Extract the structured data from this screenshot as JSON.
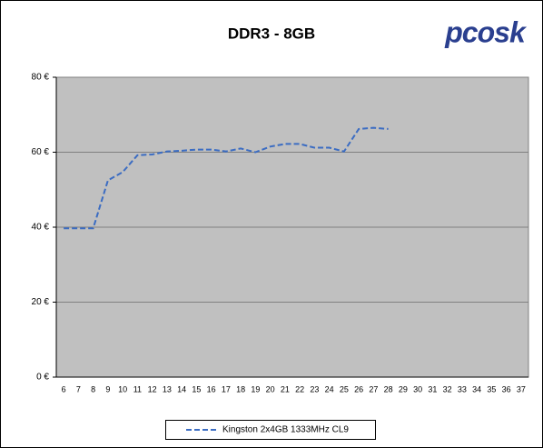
{
  "chart_data": {
    "type": "line",
    "title": "DDR3 - 8GB",
    "logo": "pcosk",
    "categories": [
      "6",
      "7",
      "8",
      "9",
      "10",
      "11",
      "12",
      "13",
      "14",
      "15",
      "16",
      "17",
      "18",
      "19",
      "20",
      "21",
      "22",
      "23",
      "24",
      "25",
      "26",
      "27",
      "28",
      "29",
      "30",
      "31",
      "32",
      "33",
      "34",
      "35",
      "36",
      "37"
    ],
    "series": [
      {
        "name": "Kingston 2x4GB 1333MHz CL9",
        "color": "#3b6cc2",
        "values": [
          39.7,
          39.7,
          39.7,
          52.5,
          54.7,
          59.2,
          59.4,
          60.2,
          60.4,
          60.7,
          60.7,
          60.2,
          61,
          60,
          61.5,
          62.2,
          62.2,
          61.2,
          61.2,
          60.2,
          66.2,
          66.5,
          66.2,
          null,
          null,
          null,
          null,
          null,
          null,
          null,
          null,
          null
        ]
      }
    ],
    "ylim": [
      0,
      80
    ],
    "yticks": [
      {
        "value": 0,
        "label": "0 €"
      },
      {
        "value": 20,
        "label": "20 €"
      },
      {
        "value": 40,
        "label": "40 €"
      },
      {
        "value": 60,
        "label": "60 €"
      },
      {
        "value": 80,
        "label": "80 €"
      }
    ],
    "grid": true,
    "legend": "bottom"
  }
}
